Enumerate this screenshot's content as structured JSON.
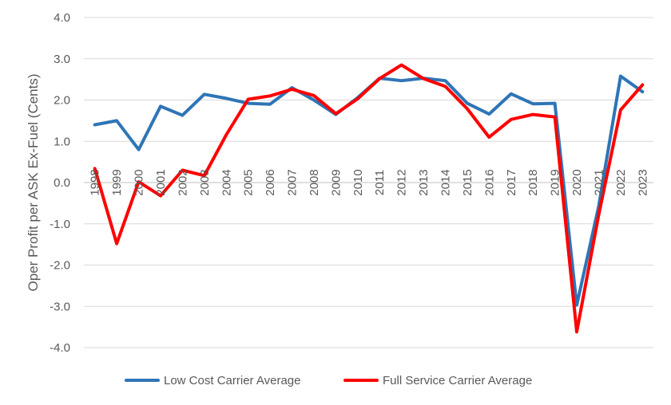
{
  "chart_data": {
    "type": "line",
    "title": "",
    "xlabel": "",
    "ylabel": "Oper Profit per ASK Ex-Fuel (Cents)",
    "ylim": [
      -4.0,
      4.0
    ],
    "yticks": [
      "4.0",
      "3.0",
      "2.0",
      "1.0",
      "0.0",
      "-1.0",
      "-2.0",
      "-3.0",
      "-4.0"
    ],
    "ytick_values": [
      4,
      3,
      2,
      1,
      0,
      -1,
      -2,
      -3,
      -4
    ],
    "x": [
      "1998",
      "1999",
      "2000",
      "2001",
      "2002",
      "2003",
      "2004",
      "2005",
      "2006",
      "2007",
      "2008",
      "2009",
      "2010",
      "2011",
      "2012",
      "2013",
      "2014",
      "2015",
      "2016",
      "2017",
      "2018",
      "2019",
      "2020",
      "2021",
      "2022",
      "2023"
    ],
    "grid": true,
    "legend_position": "bottom",
    "series": [
      {
        "name": "Low Cost Carrier Average",
        "color": "#2E75B6",
        "values": [
          1.4,
          1.5,
          0.8,
          1.85,
          1.63,
          2.14,
          2.04,
          1.92,
          1.9,
          2.3,
          2.0,
          1.65,
          2.06,
          2.53,
          2.47,
          2.53,
          2.47,
          1.92,
          1.66,
          2.15,
          1.91,
          1.92,
          -2.97,
          -0.58,
          2.58,
          2.2
        ]
      },
      {
        "name": "Full Service Carrier Average",
        "color": "#FF0000",
        "values": [
          0.34,
          -1.48,
          0.02,
          -0.32,
          0.3,
          0.17,
          1.16,
          2.02,
          2.1,
          2.26,
          2.11,
          1.67,
          2.03,
          2.52,
          2.85,
          2.52,
          2.33,
          1.79,
          1.1,
          1.53,
          1.65,
          1.59,
          -3.62,
          -0.79,
          1.76,
          2.37
        ]
      }
    ]
  }
}
